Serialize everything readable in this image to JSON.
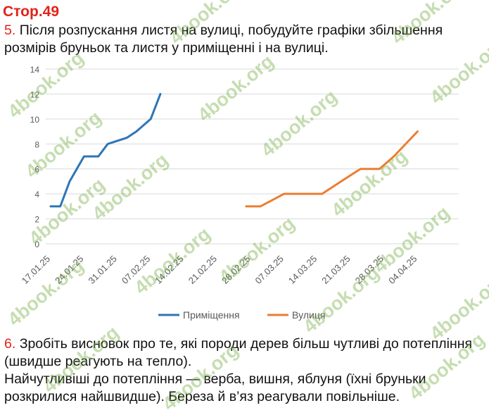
{
  "header": {
    "page_label": "Стор.49"
  },
  "task5": {
    "number": "5.",
    "text": "Після розпускання листя на вулиці, побудуйте графіки збільшення розмірів бруньок та листя у приміщенні і на вулиці."
  },
  "chart_data": {
    "type": "line",
    "categories": [
      "17.01.25",
      "24.01.25",
      "31.01.25",
      "07.02.25",
      "14.02.25",
      "21.02.25",
      "28.02.25",
      "07.03.25",
      "14.03.25",
      "21.03.25",
      "28.03.25",
      "04.04.25"
    ],
    "y_ticks": [
      0,
      2,
      4,
      6,
      8,
      10,
      12,
      14
    ],
    "ylim": [
      0,
      14
    ],
    "legend_position": "bottom",
    "series": [
      {
        "name": "Приміщення",
        "color": "#2e75b6",
        "points": [
          [
            0,
            3
          ],
          [
            0.29,
            3
          ],
          [
            0.57,
            5
          ],
          [
            1,
            7
          ],
          [
            1.43,
            7
          ],
          [
            1.71,
            8
          ],
          [
            2.29,
            8.5
          ],
          [
            2.57,
            9
          ],
          [
            3,
            10
          ],
          [
            3.29,
            12
          ]
        ]
      },
      {
        "name": "Вулиця",
        "color": "#ed7d31",
        "points": [
          [
            5.86,
            3
          ],
          [
            6.29,
            3
          ],
          [
            7,
            4
          ],
          [
            7.71,
            4
          ],
          [
            8.14,
            4
          ],
          [
            8.71,
            5
          ],
          [
            9.29,
            6
          ],
          [
            9.86,
            6
          ],
          [
            10.29,
            7
          ],
          [
            11,
            9
          ]
        ]
      }
    ]
  },
  "task6": {
    "number": "6.",
    "text": "Зробіть висновок про те, які породи дерев більш чутливі до потепління (швидше реагують на тепло)."
  },
  "answer": {
    "text": "Найчутливіші до потепління — верба, вишня, яблуня (їхні бруньки розкрилися найшвидше). Береза й в’яз реагували повільніше."
  },
  "watermark": {
    "text": "4book.org",
    "color": "#8cbf54"
  }
}
